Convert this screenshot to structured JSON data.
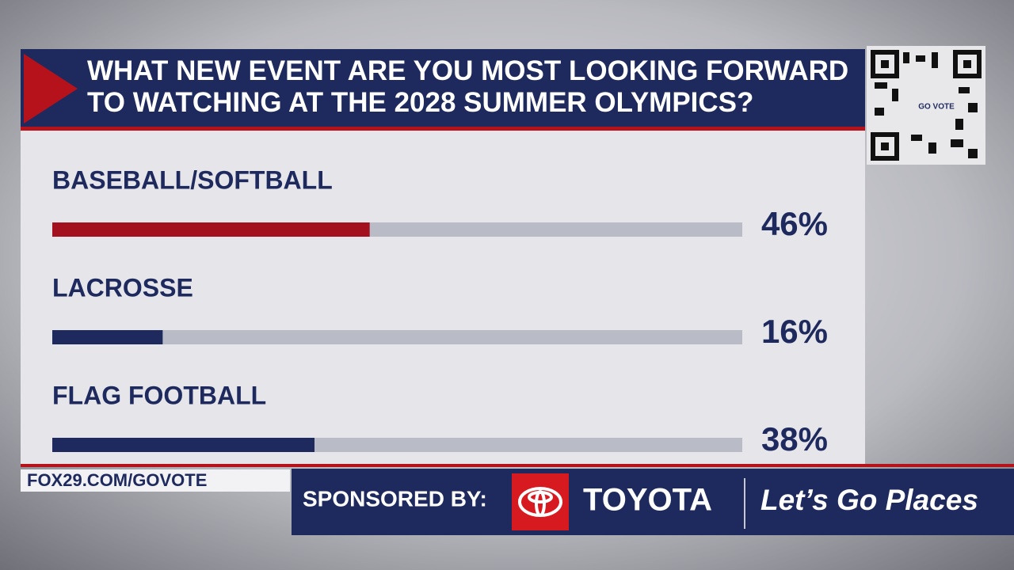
{
  "chart_data": {
    "type": "bar",
    "orientation": "horizontal",
    "title": "WHAT NEW EVENT ARE YOU MOST LOOKING FORWARD TO WATCHING AT THE 2028 SUMMER OLYMPICS?",
    "categories": [
      "BASEBALL/SOFTBALL",
      "LACROSSE",
      "FLAG FOOTBALL"
    ],
    "values": [
      46,
      16,
      38
    ],
    "value_labels": [
      "46%",
      "16%",
      "38%"
    ],
    "colors": [
      "#a3111f",
      "#1e2a5e",
      "#1e2a5e"
    ],
    "xlim": [
      0,
      100
    ]
  },
  "qr": {
    "label": "GO VOTE"
  },
  "footer": {
    "url": "FOX29.COM/GOVOTE",
    "sponsored": "SPONSORED BY:",
    "brand": "TOYOTA",
    "slogan": "Let’s Go Places"
  }
}
